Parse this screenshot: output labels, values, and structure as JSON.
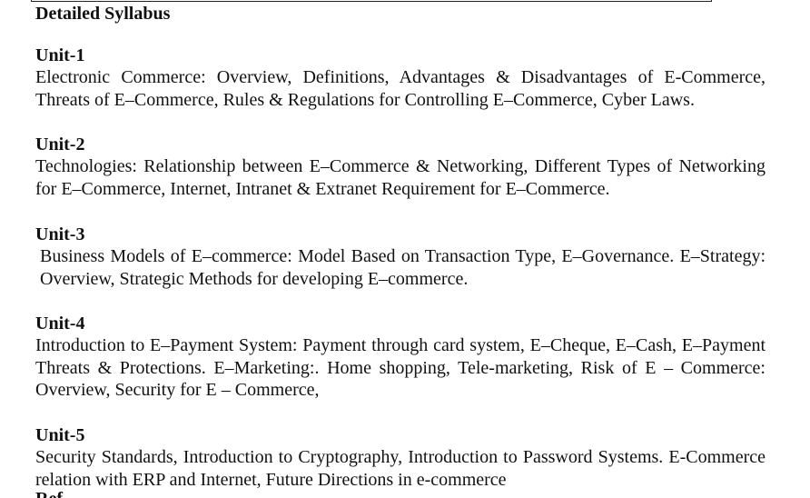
{
  "document": {
    "heading": "Detailed Syllabus",
    "units": [
      {
        "title": "Unit-1",
        "text": "Electronic Commerce: Overview, Definitions, Advantages & Disadvantages of E-Commerce, Threats of E–Commerce, Rules & Regulations for Controlling E–Commerce, Cyber Laws."
      },
      {
        "title": "Unit-2",
        "text": "Technologies: Relationship between E–Commerce & Networking, Different Types of Networking for E–Commerce, Internet, Intranet & Extranet Requirement for E–Commerce."
      },
      {
        "title": "Unit-3",
        "text": "Business Models of E–commerce: Model Based on Transaction Type, E–Governance. E–Strategy: Overview, Strategic Methods for developing E–commerce."
      },
      {
        "title": "Unit-4",
        "text": "Introduction to E–Payment System: Payment through card system, E–Cheque, E–Cash, E–Payment Threats & Protections.  E–Marketing:. Home shopping, Tele-marketing, Risk of E – Commerce: Overview, Security for E – Commerce,"
      },
      {
        "title": "Unit-5",
        "text": "Security Standards, Introduction to Cryptography, Introduction to Password Systems. E-Commerce relation with ERP and Internet, Future Directions in e-commerce"
      }
    ],
    "next_heading_partial": "Ref"
  }
}
